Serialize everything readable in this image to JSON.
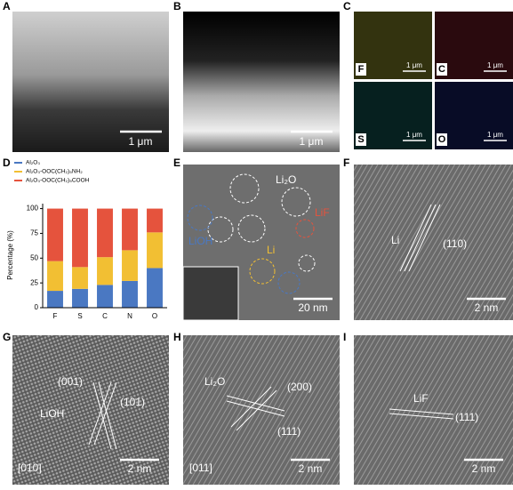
{
  "panels": [
    {
      "label": "A",
      "scale_bar": "1 μm"
    },
    {
      "label": "B",
      "scale_bar": "1 μm"
    },
    {
      "label": "C",
      "maps": [
        "F",
        "C",
        "S",
        "O"
      ],
      "scale_bar": "1 μm"
    },
    {
      "label": "D"
    },
    {
      "label": "E",
      "annotations": [
        "Li₂O",
        "LiF",
        "LiOH",
        "Li"
      ],
      "scale_bar": "20 nm"
    },
    {
      "label": "F",
      "annotations": [
        "Li",
        "(110)"
      ],
      "scale_bar": "2 nm"
    },
    {
      "label": "G",
      "annotations": [
        "(001)",
        "LiOH",
        "(101)"
      ],
      "zone": "[010]",
      "scale_bar": "2 nm"
    },
    {
      "label": "H",
      "annotations": [
        "Li₂O",
        "(200)",
        "(111)"
      ],
      "zone": "[011]",
      "scale_bar": "2 nm"
    },
    {
      "label": "I",
      "annotations": [
        "LiF",
        "(111)"
      ],
      "scale_bar": "2 nm"
    }
  ],
  "chart_data": {
    "type": "bar",
    "stacked": true,
    "ylabel": "Percentage (%)",
    "categories": [
      "F",
      "S",
      "C",
      "N",
      "O"
    ],
    "series": [
      {
        "name": "Al₂O₃",
        "color": "#4a78c2",
        "values": [
          17,
          19,
          23,
          27,
          40
        ]
      },
      {
        "name": "Al₂O₃-OOC(CH₂)₅NH₂",
        "color": "#f2bf33",
        "values": [
          30,
          22,
          28,
          31,
          36
        ]
      },
      {
        "name": "Al₂O₃-OOC(CH₂)₅COOH",
        "color": "#e5533d",
        "values": [
          53,
          59,
          49,
          42,
          24
        ]
      }
    ],
    "ylim": [
      0,
      105
    ],
    "yticks": [
      0,
      25,
      50,
      75,
      100
    ]
  }
}
